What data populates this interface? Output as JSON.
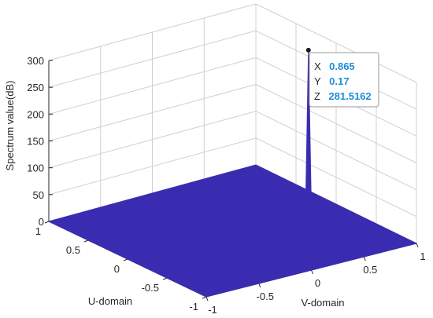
{
  "chart_data": {
    "type": "surface",
    "xlabel": "V-domain",
    "ylabel": "U-domain",
    "zlabel": "Spectrum value(dB)",
    "xlim": [
      -1,
      1
    ],
    "ylim": [
      -1,
      1
    ],
    "zlim": [
      0,
      300
    ],
    "x_ticks": [
      "-1",
      "-0.5",
      "0",
      "0.5",
      "1"
    ],
    "y_ticks": [
      "-1",
      "-0.5",
      "0",
      "0.5",
      "1"
    ],
    "z_ticks": [
      "0",
      "50",
      "100",
      "150",
      "200",
      "250",
      "300"
    ],
    "grid": true,
    "surface_color": "#3a2cb0",
    "floor_value": 0,
    "peak": {
      "x": 0.865,
      "y": 0.17,
      "z": 281.5162
    },
    "datatip": {
      "x_label": "X",
      "x_value": "0.865",
      "y_label": "Y",
      "y_value": "0.17",
      "z_label": "Z",
      "z_value": "281.5162"
    }
  }
}
